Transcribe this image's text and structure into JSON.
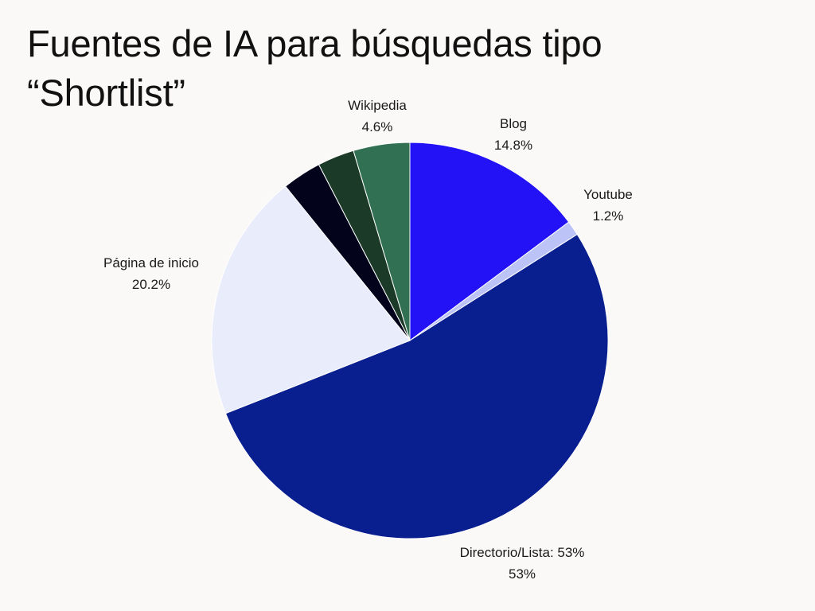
{
  "chart_data": {
    "type": "pie",
    "title": "Fuentes de IA para búsquedas tipo “Shortlist”",
    "start_angle_deg": 0,
    "direction": "clockwise",
    "slices": [
      {
        "name": "Blog",
        "label": "Blog",
        "value": 14.8,
        "value_label": "14.8%",
        "color": "#2212f5"
      },
      {
        "name": "Youtube",
        "label": "Youtube",
        "value": 1.2,
        "value_label": "1.2%",
        "color": "#bcc3f7"
      },
      {
        "name": "Directorio/Lista: 53%",
        "label": "Directorio/Lista: 53%",
        "value": 53,
        "value_label": "53%",
        "color": "#0a1f8f"
      },
      {
        "name": "Página de inicio",
        "label": "Página de inicio",
        "value": 20.2,
        "value_label": "20.2%",
        "color": "#e8ecfb"
      },
      {
        "name": "",
        "label": "",
        "value": 3.2,
        "value_label": "",
        "color": "#03041c"
      },
      {
        "name": "",
        "label": "",
        "value": 3.0,
        "value_label": "",
        "color": "#1b3a28"
      },
      {
        "name": "Wikipedia",
        "label": "Wikipedia",
        "value": 4.6,
        "value_label": "4.6%",
        "color": "#317053"
      }
    ]
  }
}
